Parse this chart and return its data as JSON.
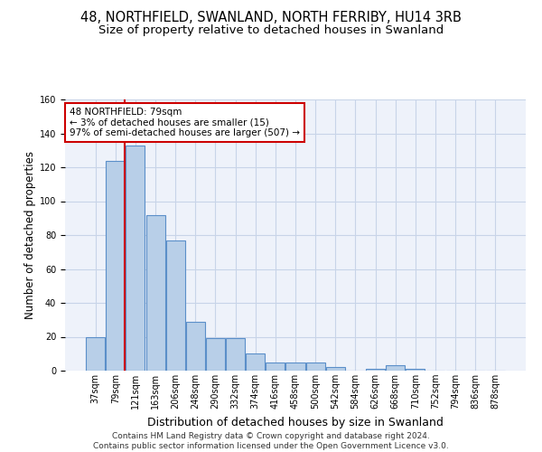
{
  "title1": "48, NORTHFIELD, SWANLAND, NORTH FERRIBY, HU14 3RB",
  "title2": "Size of property relative to detached houses in Swanland",
  "xlabel": "Distribution of detached houses by size in Swanland",
  "ylabel": "Number of detached properties",
  "categories": [
    "37sqm",
    "79sqm",
    "121sqm",
    "163sqm",
    "206sqm",
    "248sqm",
    "290sqm",
    "332sqm",
    "374sqm",
    "416sqm",
    "458sqm",
    "500sqm",
    "542sqm",
    "584sqm",
    "626sqm",
    "668sqm",
    "710sqm",
    "752sqm",
    "794sqm",
    "836sqm",
    "878sqm"
  ],
  "values": [
    20,
    124,
    133,
    92,
    77,
    29,
    19,
    19,
    10,
    5,
    5,
    5,
    2,
    0,
    1,
    3,
    1,
    0,
    0,
    0,
    0
  ],
  "bar_color": "#b8cfe8",
  "bar_edge_color": "#5b8fc9",
  "highlight_bar_index": 1,
  "highlight_color": "#cc0000",
  "annotation_text": "48 NORTHFIELD: 79sqm\n← 3% of detached houses are smaller (15)\n97% of semi-detached houses are larger (507) →",
  "ylim": [
    0,
    160
  ],
  "yticks": [
    0,
    20,
    40,
    60,
    80,
    100,
    120,
    140,
    160
  ],
  "footnote": "Contains HM Land Registry data © Crown copyright and database right 2024.\nContains public sector information licensed under the Open Government Licence v3.0.",
  "background_color": "#eef2fa",
  "grid_color": "#c8d4e8",
  "title_fontsize": 10.5,
  "subtitle_fontsize": 9.5,
  "axis_label_fontsize": 8.5,
  "tick_fontsize": 7,
  "footnote_fontsize": 6.5,
  "annot_fontsize": 7.5
}
